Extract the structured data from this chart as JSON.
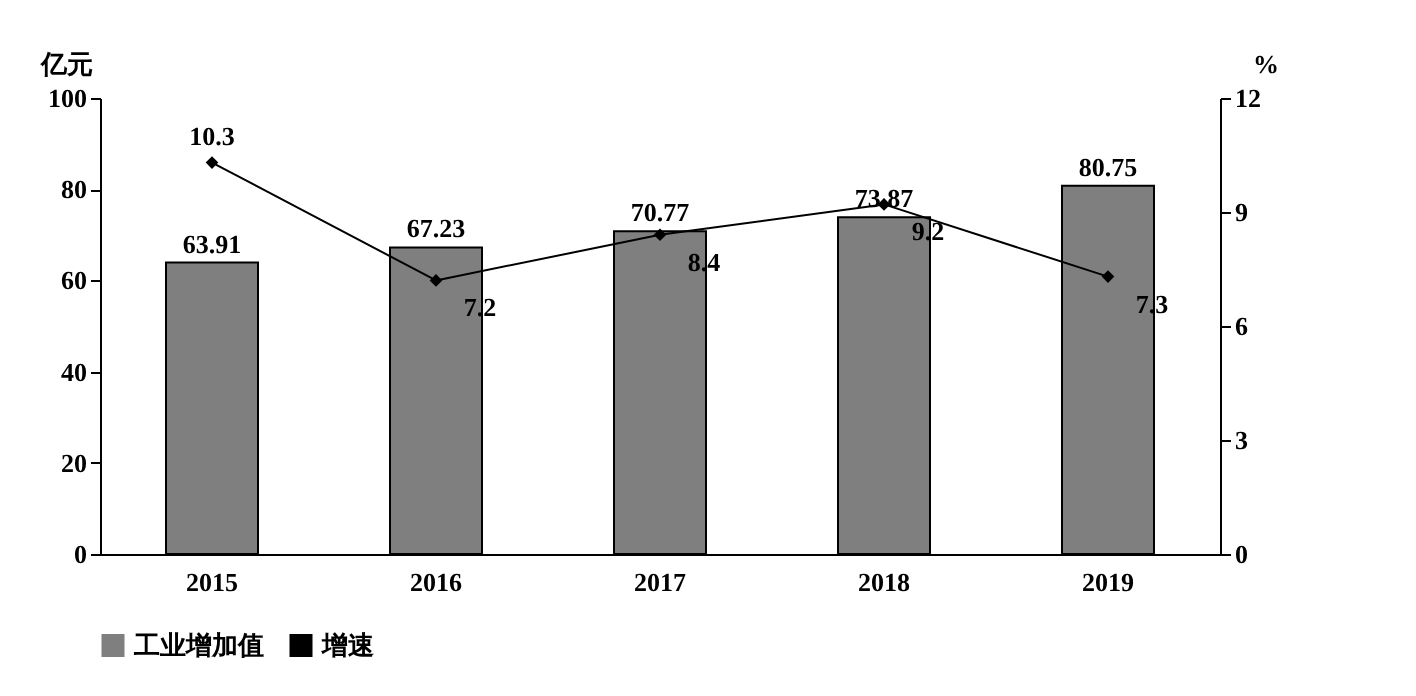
{
  "chart_data": {
    "type": "bar",
    "categories": [
      "2015",
      "2016",
      "2017",
      "2018",
      "2019"
    ],
    "ylabel": "亿元",
    "y2label": "%",
    "ylim": [
      0,
      100
    ],
    "yticks": [
      0,
      20,
      40,
      60,
      80,
      100
    ],
    "y2lim": [
      0,
      12
    ],
    "y2ticks": [
      0,
      3,
      6,
      9,
      12
    ],
    "series": [
      {
        "name": "工业增加值",
        "color": "#7f7f7f",
        "values": [
          63.91,
          67.23,
          70.77,
          73.87,
          80.75
        ]
      },
      {
        "name": "增速",
        "type": "line",
        "axis": "y2",
        "color": "#000000",
        "marker": "diamond",
        "line_style": "solid",
        "values": [
          10.3,
          7.2,
          8.4,
          9.2,
          7.3
        ]
      }
    ],
    "data_labels": true,
    "grid": false,
    "legend": "bottom"
  }
}
